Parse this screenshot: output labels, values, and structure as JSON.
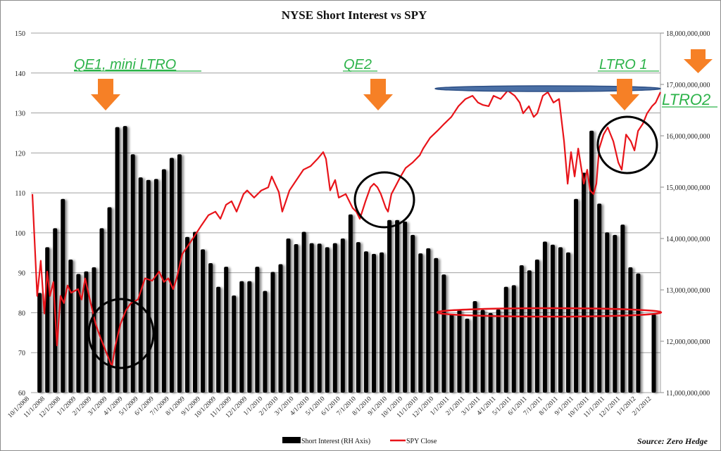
{
  "chart_data": {
    "type": "bar+line",
    "title": "NYSE Short Interest vs SPY",
    "x_unit": "months since 10/1/2008",
    "xlim": [
      0.14,
      40.53
    ],
    "x_tick_labels": [
      "10/1/2008",
      "11/1/2008",
      "12/1/2008",
      "1/1/2009",
      "2/1/2009",
      "3/1/2009",
      "4/1/2009",
      "5/1/2009",
      "6/1/2009",
      "7/1/2009",
      "8/1/2009",
      "9/1/2009",
      "10/1/2009",
      "11/1/2009",
      "12/1/2009",
      "1/1/2010",
      "2/1/2010",
      "3/1/2010",
      "4/1/2010",
      "5/1/2010",
      "6/1/2010",
      "7/1/2010",
      "8/1/2010",
      "9/1/2010",
      "10/1/2010",
      "11/1/2010",
      "12/1/2010",
      "1/1/2011",
      "2/1/2011",
      "3/1/2011",
      "4/1/2011",
      "5/1/2011",
      "6/1/2011",
      "7/1/2011",
      "8/1/2011",
      "9/1/2011",
      "10/1/2011",
      "11/1/2011",
      "12/1/2011",
      "1/1/2012",
      "2/1/2012"
    ],
    "left_axis": {
      "ylim": [
        60,
        150
      ],
      "ticks": [
        "60",
        "70",
        "80",
        "90",
        "100",
        "110",
        "120",
        "130",
        "140",
        "150"
      ]
    },
    "right_axis": {
      "ylim_billions": [
        11,
        18
      ],
      "ticks": [
        "11,000,000,000",
        "12,000,000,000",
        "13,000,000,000",
        "14,000,000,000",
        "15,000,000,000",
        "16,000,000,000",
        "17,000,000,000",
        "18,000,000,000"
      ]
    },
    "grid": true,
    "legend_position": "bottom",
    "series": [
      {
        "name": "Short Interest (RH Axis)",
        "kind": "bar",
        "axis": "right",
        "color": "#000000",
        "t_start": 0.6,
        "t_step": 0.5,
        "values_billions": [
          12.94,
          13.83,
          14.2,
          14.77,
          13.59,
          13.31,
          13.36,
          13.44,
          14.2,
          14.61,
          16.17,
          16.19,
          15.64,
          15.19,
          15.14,
          15.16,
          15.35,
          15.57,
          15.64,
          14.03,
          14.13,
          13.79,
          13.52,
          13.06,
          13.45,
          12.89,
          13.17,
          13.17,
          13.45,
          12.98,
          13.35,
          13.5,
          14.0,
          13.89,
          14.13,
          13.91,
          13.9,
          13.83,
          13.91,
          14.0,
          14.47,
          13.93,
          13.75,
          13.7,
          13.73,
          14.36,
          14.36,
          14.33,
          14.07,
          13.71,
          13.81,
          13.62,
          13.3,
          12.53,
          12.61,
          12.44,
          12.78,
          12.61,
          12.55,
          12.62,
          13.06,
          13.09,
          13.48,
          13.38,
          13.59,
          13.94,
          13.88,
          13.83,
          13.73,
          14.77,
          15.28,
          16.1,
          14.68,
          14.12,
          14.07,
          14.27,
          13.44,
          13.32,
          null,
          12.53
        ]
      },
      {
        "name": "SPY Close",
        "kind": "line",
        "axis": "left",
        "color": "#e8141a",
        "points": [
          [
            0.14,
            109.7
          ],
          [
            0.45,
            84.2
          ],
          [
            0.68,
            93.0
          ],
          [
            0.91,
            79.8
          ],
          [
            1.09,
            90.3
          ],
          [
            1.27,
            84.2
          ],
          [
            1.49,
            87.7
          ],
          [
            1.72,
            71.8
          ],
          [
            1.95,
            84.2
          ],
          [
            2.17,
            82.4
          ],
          [
            2.4,
            86.8
          ],
          [
            2.63,
            85.0
          ],
          [
            3.08,
            85.9
          ],
          [
            3.31,
            83.3
          ],
          [
            3.53,
            88.6
          ],
          [
            3.89,
            82.4
          ],
          [
            4.21,
            77.1
          ],
          [
            4.53,
            73.6
          ],
          [
            4.89,
            70.1
          ],
          [
            5.25,
            66.5
          ],
          [
            5.48,
            71.8
          ],
          [
            5.8,
            77.1
          ],
          [
            6.16,
            80.6
          ],
          [
            6.48,
            82.4
          ],
          [
            6.93,
            83.3
          ],
          [
            7.38,
            88.6
          ],
          [
            7.84,
            88.0
          ],
          [
            8.29,
            90.3
          ],
          [
            8.6,
            87.7
          ],
          [
            8.88,
            88.6
          ],
          [
            9.19,
            85.9
          ],
          [
            9.42,
            88.6
          ],
          [
            9.78,
            94.7
          ],
          [
            10.1,
            96.5
          ],
          [
            10.55,
            99.1
          ],
          [
            11.0,
            101.8
          ],
          [
            11.46,
            104.4
          ],
          [
            11.91,
            105.3
          ],
          [
            12.23,
            103.5
          ],
          [
            12.59,
            107.0
          ],
          [
            12.95,
            107.9
          ],
          [
            13.27,
            105.3
          ],
          [
            13.72,
            109.7
          ],
          [
            13.95,
            110.6
          ],
          [
            14.4,
            108.8
          ],
          [
            14.86,
            110.6
          ],
          [
            15.31,
            111.4
          ],
          [
            15.53,
            114.1
          ],
          [
            15.99,
            110.2
          ],
          [
            16.21,
            105.3
          ],
          [
            16.44,
            107.9
          ],
          [
            16.67,
            110.6
          ],
          [
            17.12,
            113.2
          ],
          [
            17.57,
            115.8
          ],
          [
            18.03,
            116.7
          ],
          [
            18.48,
            118.5
          ],
          [
            18.84,
            120.2
          ],
          [
            19.02,
            118.5
          ],
          [
            19.29,
            110.6
          ],
          [
            19.61,
            113.2
          ],
          [
            19.84,
            108.8
          ],
          [
            20.29,
            109.7
          ],
          [
            20.74,
            106.2
          ],
          [
            20.97,
            105.3
          ],
          [
            21.2,
            103.5
          ],
          [
            21.56,
            107.9
          ],
          [
            21.88,
            111.4
          ],
          [
            22.1,
            112.3
          ],
          [
            22.33,
            111.4
          ],
          [
            22.55,
            109.7
          ],
          [
            22.87,
            106.2
          ],
          [
            23.01,
            105.3
          ],
          [
            23.23,
            109.7
          ],
          [
            23.46,
            111.4
          ],
          [
            23.82,
            114.1
          ],
          [
            24.14,
            116.2
          ],
          [
            24.59,
            117.6
          ],
          [
            25.05,
            119.4
          ],
          [
            25.27,
            121.1
          ],
          [
            25.72,
            123.8
          ],
          [
            26.18,
            125.5
          ],
          [
            26.63,
            127.3
          ],
          [
            27.08,
            129.0
          ],
          [
            27.54,
            131.7
          ],
          [
            27.99,
            133.5
          ],
          [
            28.44,
            134.3
          ],
          [
            28.8,
            132.6
          ],
          [
            29.12,
            132.0
          ],
          [
            29.48,
            131.7
          ],
          [
            29.8,
            134.3
          ],
          [
            30.25,
            133.5
          ],
          [
            30.71,
            135.6
          ],
          [
            31.16,
            134.3
          ],
          [
            31.48,
            132.6
          ],
          [
            31.7,
            129.9
          ],
          [
            32.07,
            131.7
          ],
          [
            32.38,
            129.0
          ],
          [
            32.61,
            129.9
          ],
          [
            32.97,
            134.3
          ],
          [
            33.29,
            135.2
          ],
          [
            33.65,
            132.6
          ],
          [
            34.01,
            133.5
          ],
          [
            34.33,
            122.9
          ],
          [
            34.56,
            112.3
          ],
          [
            34.78,
            120.2
          ],
          [
            35.01,
            114.1
          ],
          [
            35.24,
            121.1
          ],
          [
            35.6,
            112.3
          ],
          [
            35.82,
            115.8
          ],
          [
            36.0,
            110.6
          ],
          [
            36.23,
            109.7
          ],
          [
            36.41,
            112.3
          ],
          [
            36.59,
            121.1
          ],
          [
            36.87,
            124.6
          ],
          [
            37.14,
            126.4
          ],
          [
            37.5,
            122.9
          ],
          [
            37.82,
            117.6
          ],
          [
            38.04,
            115.8
          ],
          [
            38.32,
            124.6
          ],
          [
            38.63,
            122.9
          ],
          [
            38.86,
            120.6
          ],
          [
            39.09,
            125.5
          ],
          [
            39.4,
            127.3
          ],
          [
            39.67,
            129.9
          ],
          [
            39.99,
            131.7
          ],
          [
            40.22,
            132.6
          ],
          [
            40.53,
            135.2
          ]
        ]
      }
    ],
    "annotations": {
      "qe1": "QE1, mini LTRO",
      "qe2": "QE2",
      "ltro1": "LTRO 1",
      "ltro2": "LTRO2",
      "annotation_color": "#2db34a",
      "arrow_color": "#f68026"
    },
    "legend": {
      "bar_label": "Short Interest (RH Axis)",
      "line_label": "SPY Close"
    },
    "source": "Source: Zero Hedge"
  }
}
